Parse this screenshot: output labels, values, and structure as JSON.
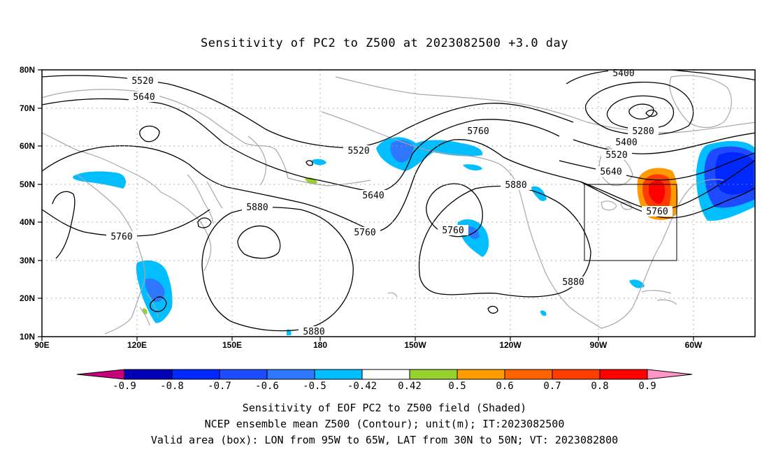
{
  "title": "Sensitivity of PC2 to Z500 at 2023082500 +3.0 day",
  "map": {
    "lat_labels": [
      "80N",
      "70N",
      "60N",
      "50N",
      "40N",
      "30N",
      "20N",
      "10N"
    ],
    "lon_labels": [
      "90E",
      "120E",
      "150E",
      "180",
      "150W",
      "120W",
      "90W",
      "60W"
    ],
    "contour_labels": [
      "5520",
      "5640",
      "5760",
      "5880",
      "5400",
      "5280"
    ],
    "contour_levels": [
      5280,
      5400,
      5520,
      5640,
      5760,
      5880
    ],
    "valid_box": {
      "lon_min": "95W",
      "lon_max": "65W",
      "lat_min": "30N",
      "lat_max": "50N"
    }
  },
  "colorbar": {
    "labels": [
      "-0.9",
      "-0.8",
      "-0.7",
      "-0.6",
      "-0.5",
      "-0.42",
      "0.42",
      "0.5",
      "0.6",
      "0.7",
      "0.8",
      "0.9"
    ],
    "colors": [
      "#c8007c",
      "#0000b4",
      "#0028ff",
      "#1e4bff",
      "#2d78ff",
      "#00beff",
      "#ffffff",
      "#96d22d",
      "#ff9b00",
      "#ff6400",
      "#ff3c00",
      "#ff0000",
      "#ff96c8"
    ]
  },
  "footer": {
    "line1": "Sensitivity of EOF PC2 to Z500 field (Shaded)",
    "line2": "NCEP ensemble mean Z500 (Contour); unit(m); IT:2023082500",
    "line3": "Valid area (box): LON from 95W to 65W, LAT from 30N to 50N; VT: 2023082800"
  }
}
